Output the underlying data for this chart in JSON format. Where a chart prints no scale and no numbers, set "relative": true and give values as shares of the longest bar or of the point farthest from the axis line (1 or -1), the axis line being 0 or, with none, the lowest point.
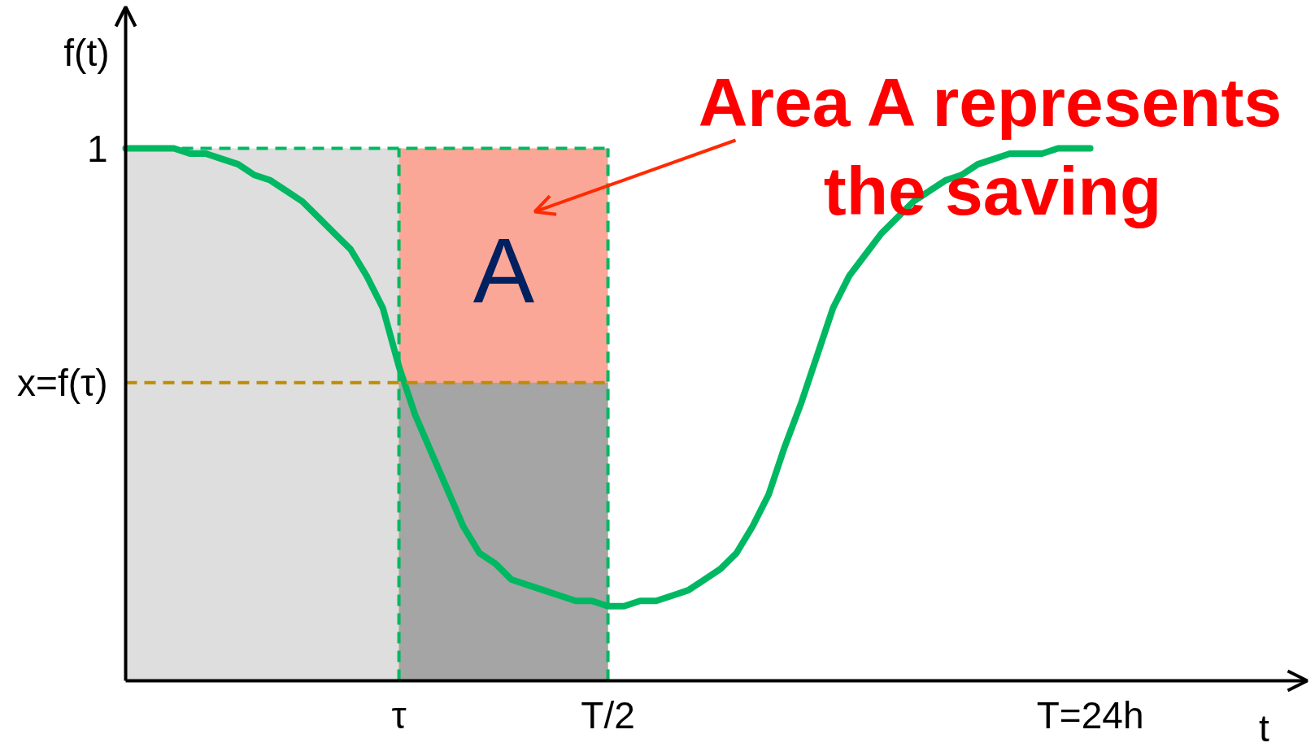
{
  "chart_data": {
    "type": "line",
    "xlabel": "t",
    "ylabel": "f(t)",
    "relative": true,
    "grid": false,
    "categories": [
      null,
      null,
      null,
      null,
      null,
      null,
      null,
      null,
      null,
      null,
      null,
      null,
      null,
      null,
      null,
      null,
      null,
      "τ",
      null,
      null,
      null,
      null,
      null,
      null,
      null,
      null,
      null,
      null,
      null,
      null,
      "T/2",
      null,
      null,
      null,
      null,
      null,
      null,
      null,
      null,
      null,
      null,
      null,
      null,
      null,
      null,
      null,
      null,
      null,
      null,
      null,
      null,
      null,
      null,
      null,
      null,
      null,
      null,
      null,
      null,
      null,
      "T=24h",
      null,
      null,
      null,
      null,
      null,
      null,
      null,
      null,
      null,
      null,
      null,
      null,
      null
    ],
    "series": [
      {
        "type": "area",
        "color": "#dedede",
        "values": [
          1,
          1,
          1,
          1,
          1,
          1,
          1,
          1,
          1,
          1,
          1,
          1,
          1,
          1,
          1,
          1,
          1,
          1,
          null,
          null,
          null,
          null,
          null,
          null,
          null,
          null,
          null,
          null,
          null,
          null,
          null,
          null,
          null,
          null,
          null,
          null,
          null,
          null,
          null,
          null,
          null,
          null,
          null,
          null,
          null,
          null,
          null,
          null,
          null,
          null,
          null,
          null,
          null,
          null,
          null,
          null,
          null,
          null,
          null,
          null,
          null,
          null,
          null,
          null,
          null,
          null,
          null,
          null,
          null,
          null,
          null,
          null,
          null,
          null
        ]
      },
      {
        "type": "area",
        "color": "#fba797",
        "values": [
          null,
          null,
          null,
          null,
          null,
          null,
          null,
          null,
          null,
          null,
          null,
          null,
          null,
          null,
          null,
          null,
          null,
          1,
          1,
          1,
          1,
          1,
          1,
          1,
          1,
          1,
          1,
          1,
          1,
          1,
          1,
          null,
          null,
          null,
          null,
          null,
          null,
          null,
          null,
          null,
          null,
          null,
          null,
          null,
          null,
          null,
          null,
          null,
          null,
          null,
          null,
          null,
          null,
          null,
          null,
          null,
          null,
          null,
          null,
          null,
          null,
          null,
          null,
          null,
          null,
          null,
          null,
          null,
          null,
          null,
          null,
          null,
          null,
          null
        ]
      },
      {
        "type": "area",
        "color": "#a5a5a5",
        "values": [
          null,
          null,
          null,
          null,
          null,
          null,
          null,
          null,
          null,
          null,
          null,
          null,
          null,
          null,
          null,
          null,
          null,
          0.56,
          0.56,
          0.56,
          0.56,
          0.56,
          0.56,
          0.56,
          0.56,
          0.56,
          0.56,
          0.56,
          0.56,
          0.56,
          0.56,
          null,
          null,
          null,
          null,
          null,
          null,
          null,
          null,
          null,
          null,
          null,
          null,
          null,
          null,
          null,
          null,
          null,
          null,
          null,
          null,
          null,
          null,
          null,
          null,
          null,
          null,
          null,
          null,
          null,
          null,
          null,
          null,
          null,
          null,
          null,
          null,
          null,
          null,
          null,
          null,
          null,
          null,
          null
        ]
      },
      {
        "color": "#00b862",
        "values": [
          1.0,
          1.0,
          1.0,
          1.0,
          0.99,
          0.99,
          0.98,
          0.97,
          0.95,
          0.94,
          0.92,
          0.9,
          0.87,
          0.84,
          0.81,
          0.76,
          0.7,
          0.59,
          0.5,
          0.43,
          0.36,
          0.29,
          0.24,
          0.22,
          0.19,
          0.18,
          0.17,
          0.16,
          0.15,
          0.15,
          0.14,
          0.14,
          0.15,
          0.15,
          0.16,
          0.17,
          0.19,
          0.21,
          0.24,
          0.29,
          0.35,
          0.44,
          0.52,
          0.61,
          0.7,
          0.76,
          0.8,
          0.84,
          0.87,
          0.9,
          0.92,
          0.94,
          0.95,
          0.97,
          0.98,
          0.99,
          0.99,
          0.99,
          1.0,
          1.0,
          1.0,
          null,
          null,
          null,
          null,
          null,
          null,
          null,
          null,
          null,
          null,
          null,
          null,
          null
        ]
      }
    ],
    "ref_lines": [
      {
        "axis": "y",
        "value": 1,
        "label": "1",
        "color": "#00b862",
        "line_style": "dashed"
      },
      {
        "axis": "y",
        "value": 0.56,
        "label": "x=f(τ)",
        "color": "#bd8c00",
        "line_style": "dashed"
      },
      {
        "axis": "x",
        "value": "τ",
        "color": "#00b862",
        "line_style": "dashed"
      },
      {
        "axis": "x",
        "value": "T/2",
        "color": "#00b862",
        "line_style": "dashed"
      }
    ],
    "annotations": [
      "A",
      "Area A represents\nthe saving"
    ]
  }
}
